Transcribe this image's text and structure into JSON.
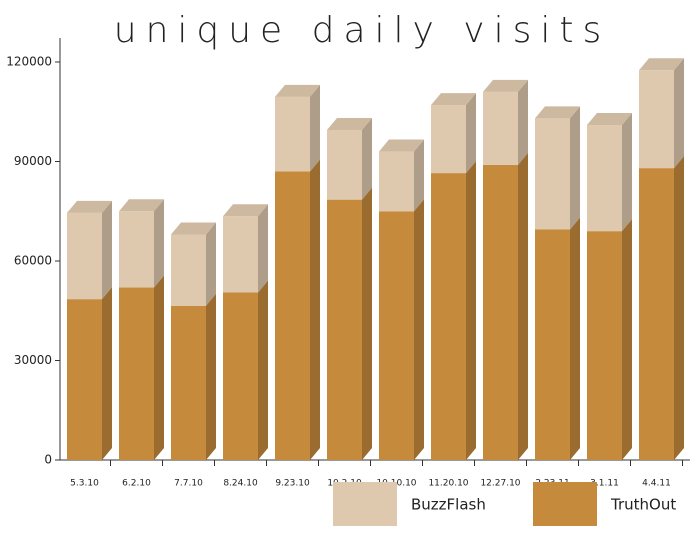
{
  "chart_data": {
    "type": "stacked-bar-3d",
    "title": "unique daily visits",
    "categories": [
      "5.3.10",
      "6.2.10",
      "7.7.10",
      "8.24.10",
      "9.23.10",
      "10.2.10",
      "10.10.10",
      "11.20.10",
      "12.27.10",
      "2.23.11",
      "3.1.11",
      "4.4.11"
    ],
    "series": [
      {
        "name": "TruthOut",
        "color": "#c68a3c",
        "values": [
          48500,
          52000,
          46500,
          50500,
          87000,
          78500,
          75000,
          86500,
          89000,
          69500,
          69000,
          88000
        ]
      },
      {
        "name": "BuzzFlash",
        "color": "#dfc9ae",
        "values": [
          26000,
          23000,
          21500,
          23000,
          22500,
          21000,
          18000,
          20500,
          22000,
          33500,
          32000,
          29500
        ]
      }
    ],
    "ylim": [
      0,
      120000
    ],
    "yticks": [
      0,
      30000,
      60000,
      90000,
      120000
    ]
  }
}
